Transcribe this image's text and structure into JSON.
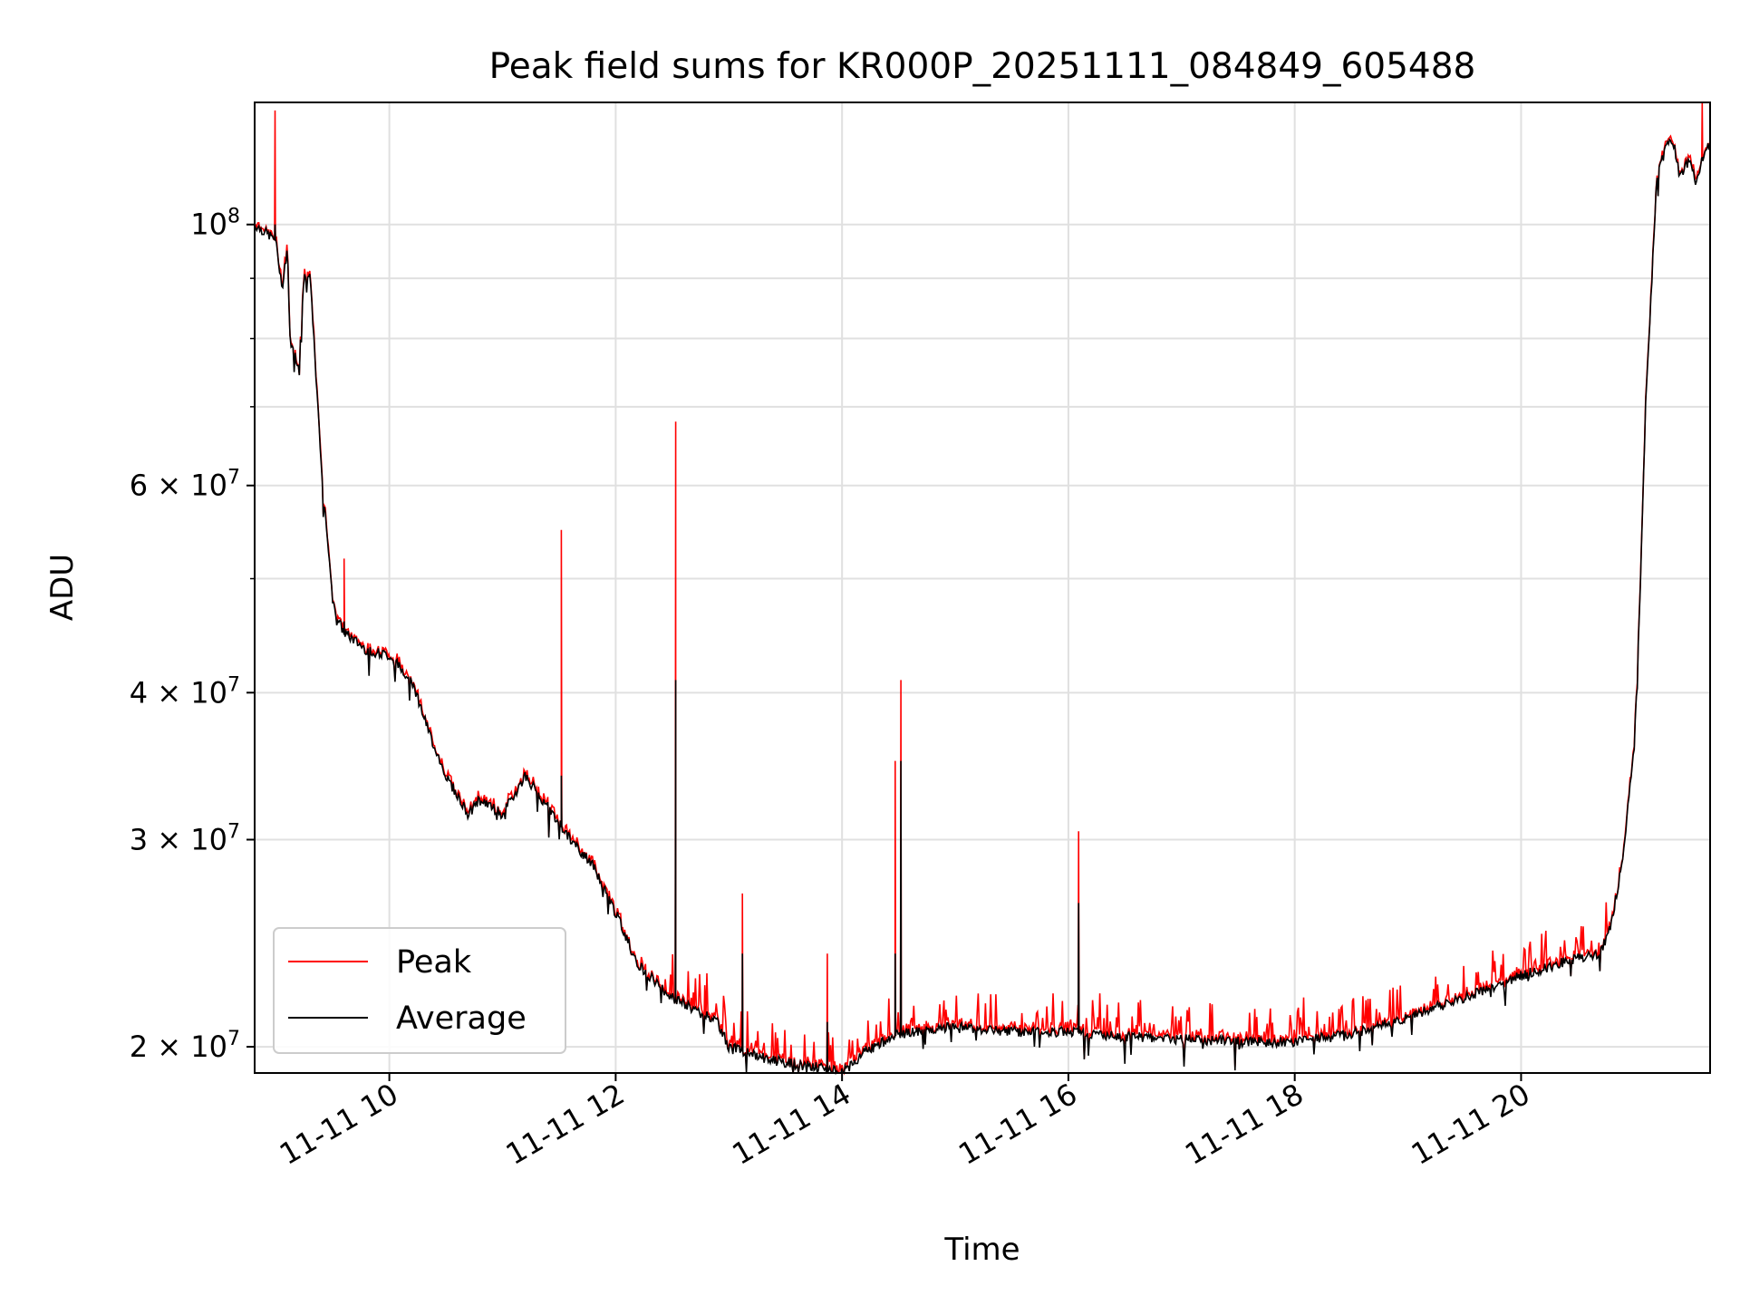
{
  "chart_data": {
    "type": "line",
    "title": "Peak field sums for KR000P_20251111_084849_605488",
    "xlabel": "Time",
    "ylabel": "ADU",
    "x_unit": "hours since 11-11 00:00",
    "xlim": [
      8.81,
      21.67
    ],
    "ylim": [
      19000000,
      127000000
    ],
    "yscale": "log",
    "grid": true,
    "legend_position": "lower-left",
    "x_ticks": [
      {
        "value": 10,
        "label": "11-11 10"
      },
      {
        "value": 12,
        "label": "11-11 12"
      },
      {
        "value": 14,
        "label": "11-11 14"
      },
      {
        "value": 16,
        "label": "11-11 16"
      },
      {
        "value": 18,
        "label": "11-11 18"
      },
      {
        "value": 20,
        "label": "11-11 20"
      }
    ],
    "y_ticks": [
      {
        "value": 20000000,
        "base": "2 × 10",
        "exp": "7"
      },
      {
        "value": 30000000,
        "base": "3 × 10",
        "exp": "7"
      },
      {
        "value": 40000000,
        "base": "4 × 10",
        "exp": "7"
      },
      {
        "value": 60000000,
        "base": "6 × 10",
        "exp": "7"
      },
      {
        "value": 100000000,
        "base": "10",
        "exp": "8"
      }
    ],
    "y_minor_ticks": [
      50000000,
      70000000,
      80000000,
      90000000
    ],
    "series": [
      {
        "name": "Peak",
        "color": "#ff0000"
      },
      {
        "name": "Average",
        "color": "#000000"
      }
    ],
    "average_curve": {
      "x": [
        8.81,
        9.0,
        9.05,
        9.1,
        9.12,
        9.15,
        9.2,
        9.25,
        9.3,
        9.35,
        9.4,
        9.5,
        9.55,
        9.6,
        9.8,
        10.0,
        10.2,
        10.35,
        10.5,
        10.7,
        10.8,
        11.0,
        11.2,
        11.4,
        11.6,
        11.8,
        12.0,
        12.2,
        12.5,
        12.9,
        13.0,
        13.2,
        13.5,
        13.8,
        14.0,
        14.2,
        14.5,
        15.0,
        15.5,
        16.0,
        16.5,
        17.0,
        17.5,
        18.0,
        18.5,
        19.0,
        19.5,
        20.0,
        20.5,
        20.7,
        20.8,
        20.9,
        21.0,
        21.05,
        21.1,
        21.2,
        21.3,
        21.35,
        21.4,
        21.45,
        21.5,
        21.55,
        21.6,
        21.67
      ],
      "y": [
        100000000,
        97000000,
        88000000,
        96000000,
        80000000,
        78000000,
        76000000,
        91000000,
        90000000,
        75000000,
        62000000,
        48000000,
        46000000,
        45000000,
        43500000,
        43000000,
        41000000,
        37000000,
        34000000,
        31500000,
        32500000,
        31500000,
        34000000,
        32000000,
        30000000,
        28500000,
        26000000,
        23500000,
        22000000,
        21000000,
        20000000,
        19700000,
        19400000,
        19200000,
        19000000,
        19800000,
        20500000,
        20800000,
        20600000,
        20600000,
        20400000,
        20300000,
        20200000,
        20200000,
        20500000,
        21200000,
        22000000,
        23000000,
        23800000,
        24000000,
        25500000,
        29000000,
        36000000,
        48000000,
        70000000,
        110000000,
        118000000,
        117000000,
        110000000,
        112000000,
        113000000,
        108000000,
        114000000,
        117000000
      ]
    },
    "peak_spikes": [
      {
        "x": 8.99,
        "peak": 125000000,
        "average": 100000000
      },
      {
        "x": 9.6,
        "peak": 52000000,
        "average": 46000000
      },
      {
        "x": 11.52,
        "peak": 55000000,
        "average": 34000000
      },
      {
        "x": 12.53,
        "peak": 68000000,
        "average": 41000000
      },
      {
        "x": 13.12,
        "peak": 27000000,
        "average": 24000000
      },
      {
        "x": 13.87,
        "peak": 24000000,
        "average": 21000000
      },
      {
        "x": 14.47,
        "peak": 35000000,
        "average": 24000000
      },
      {
        "x": 14.52,
        "peak": 41000000,
        "average": 35000000
      },
      {
        "x": 16.09,
        "peak": 30500000,
        "average": 26500000
      },
      {
        "x": 21.6,
        "peak": 127000000,
        "average": 114000000
      }
    ]
  }
}
